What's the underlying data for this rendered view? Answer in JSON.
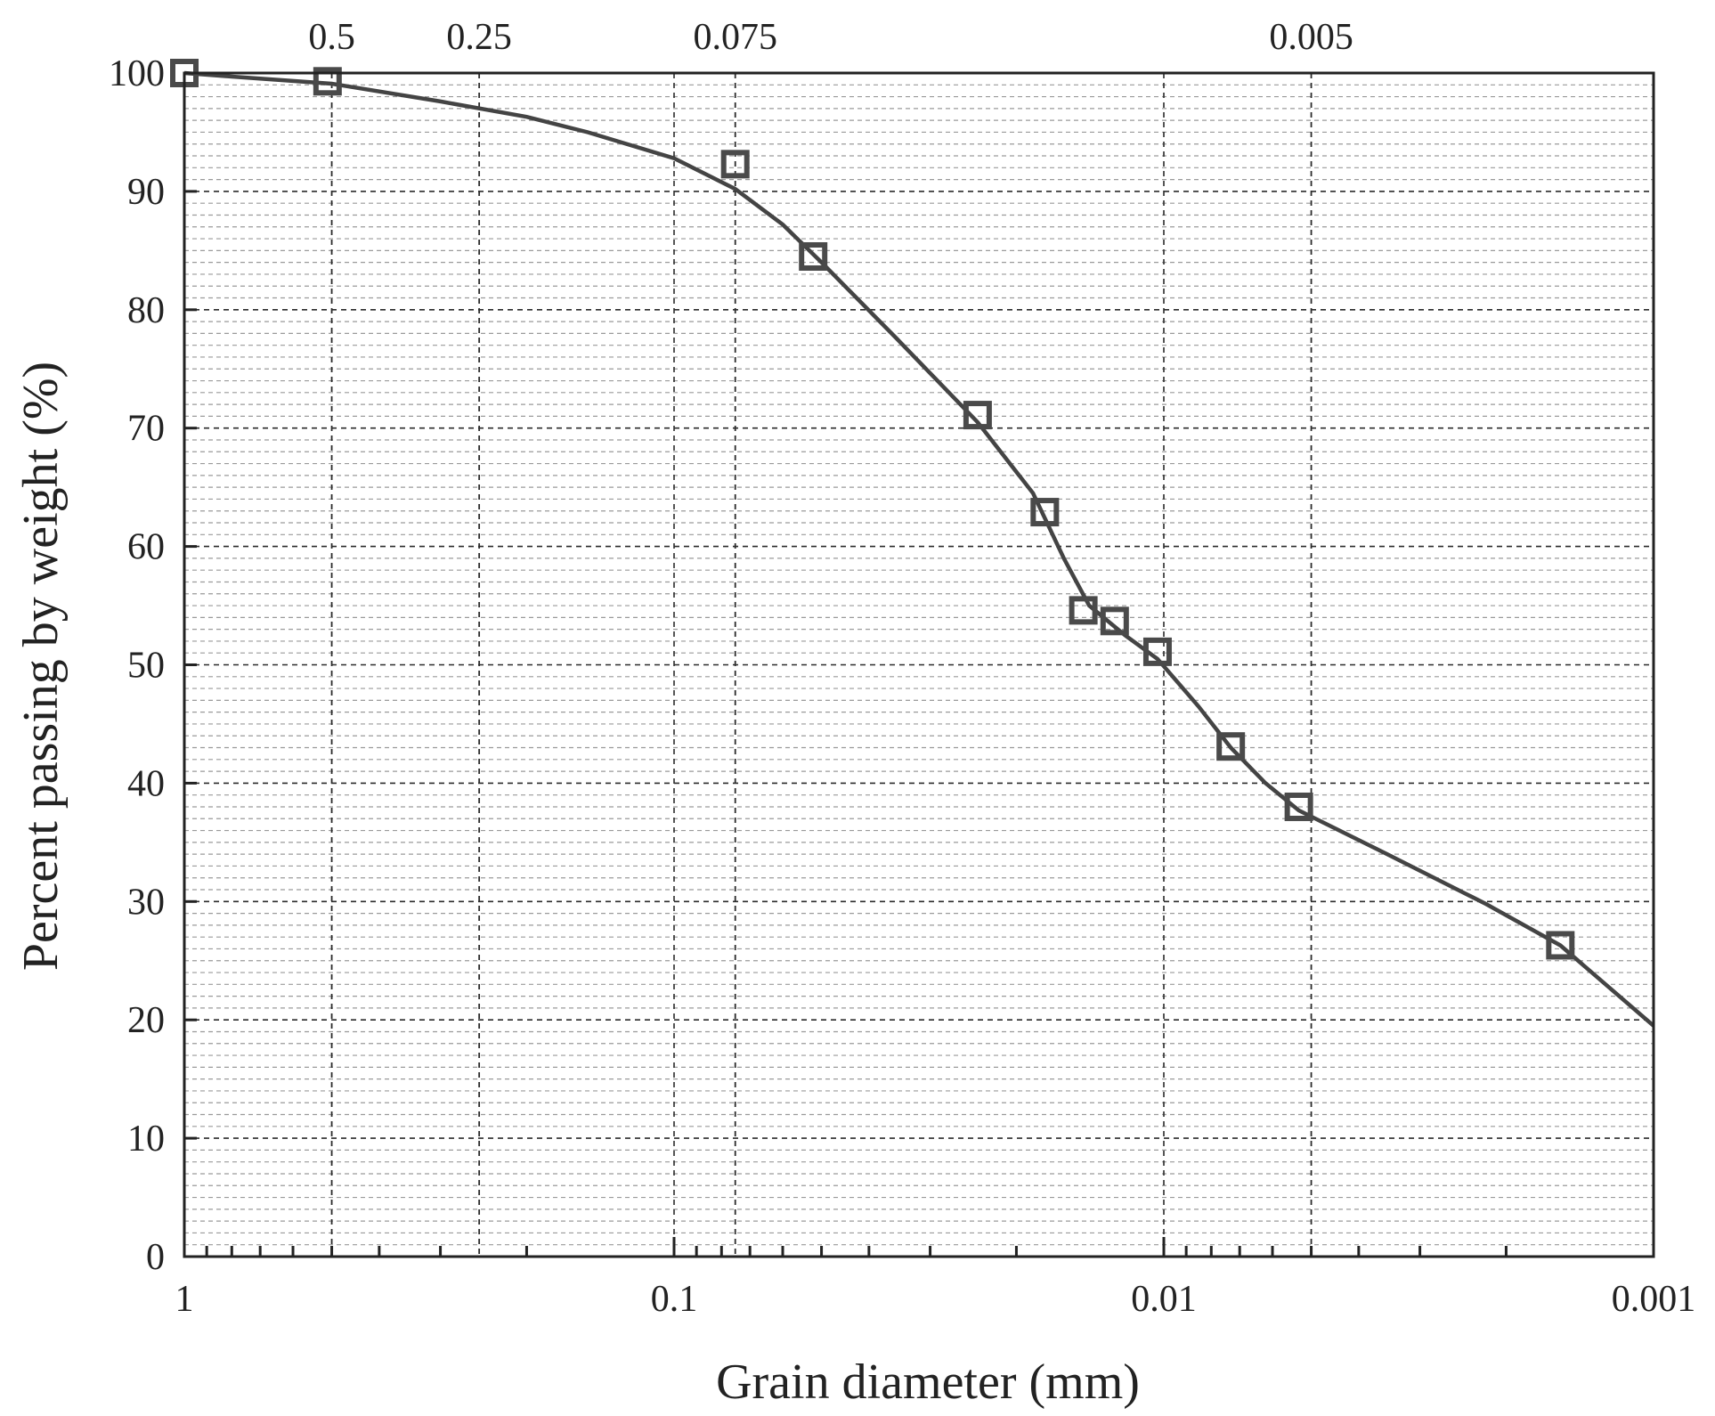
{
  "chart_data": {
    "type": "scatter",
    "xlabel": "Grain diameter (mm)",
    "ylabel": "Percent passing by weight (%)",
    "x_scale": "log",
    "x_reversed": true,
    "xlim": [
      1,
      0.001
    ],
    "ylim": [
      0,
      100
    ],
    "grid": true,
    "x_ticks": [
      {
        "value": 1,
        "label": "1"
      },
      {
        "value": 0.1,
        "label": "0.1"
      },
      {
        "value": 0.01,
        "label": "0.01"
      },
      {
        "value": 0.001,
        "label": "0.001"
      }
    ],
    "y_ticks": [
      {
        "value": 0,
        "label": "0"
      },
      {
        "value": 10,
        "label": "10"
      },
      {
        "value": 20,
        "label": "20"
      },
      {
        "value": 30,
        "label": "30"
      },
      {
        "value": 40,
        "label": "40"
      },
      {
        "value": 50,
        "label": "50"
      },
      {
        "value": 60,
        "label": "60"
      },
      {
        "value": 70,
        "label": "70"
      },
      {
        "value": 80,
        "label": "80"
      },
      {
        "value": 90,
        "label": "90"
      },
      {
        "value": 100,
        "label": "100"
      }
    ],
    "reference_sizes": [
      {
        "value": 0.5,
        "label": "0.5"
      },
      {
        "value": 0.25,
        "label": "0.25"
      },
      {
        "value": 0.075,
        "label": "0.075"
      },
      {
        "value": 0.005,
        "label": "0.005"
      }
    ],
    "points": [
      {
        "x": 1.0,
        "y": 100
      },
      {
        "x": 0.51,
        "y": 99.3
      },
      {
        "x": 0.075,
        "y": 92.3
      },
      {
        "x": 0.052,
        "y": 84.5
      },
      {
        "x": 0.024,
        "y": 71.1
      },
      {
        "x": 0.0175,
        "y": 62.9
      },
      {
        "x": 0.0146,
        "y": 54.6
      },
      {
        "x": 0.0126,
        "y": 53.7
      },
      {
        "x": 0.0103,
        "y": 51.1
      },
      {
        "x": 0.0073,
        "y": 43.1
      },
      {
        "x": 0.0053,
        "y": 38.0
      },
      {
        "x": 0.00155,
        "y": 26.3
      }
    ],
    "fit_curve": [
      {
        "x": 1.0,
        "y": 100
      },
      {
        "x": 0.8,
        "y": 99.7
      },
      {
        "x": 0.5,
        "y": 99.1
      },
      {
        "x": 0.3,
        "y": 97.6
      },
      {
        "x": 0.2,
        "y": 96.3
      },
      {
        "x": 0.15,
        "y": 95.0
      },
      {
        "x": 0.1,
        "y": 92.8
      },
      {
        "x": 0.075,
        "y": 90.2
      },
      {
        "x": 0.06,
        "y": 87.2
      },
      {
        "x": 0.05,
        "y": 84.0
      },
      {
        "x": 0.035,
        "y": 77.5
      },
      {
        "x": 0.024,
        "y": 70.5
      },
      {
        "x": 0.0185,
        "y": 64.5
      },
      {
        "x": 0.016,
        "y": 59.0
      },
      {
        "x": 0.0142,
        "y": 55.0
      },
      {
        "x": 0.012,
        "y": 52.5
      },
      {
        "x": 0.0103,
        "y": 50.5
      },
      {
        "x": 0.0085,
        "y": 46.5
      },
      {
        "x": 0.0073,
        "y": 43.0
      },
      {
        "x": 0.0062,
        "y": 40.0
      },
      {
        "x": 0.0053,
        "y": 37.7
      },
      {
        "x": 0.0035,
        "y": 34.0
      },
      {
        "x": 0.0022,
        "y": 29.8
      },
      {
        "x": 0.00155,
        "y": 26.3
      },
      {
        "x": 0.001,
        "y": 19.5
      }
    ]
  }
}
